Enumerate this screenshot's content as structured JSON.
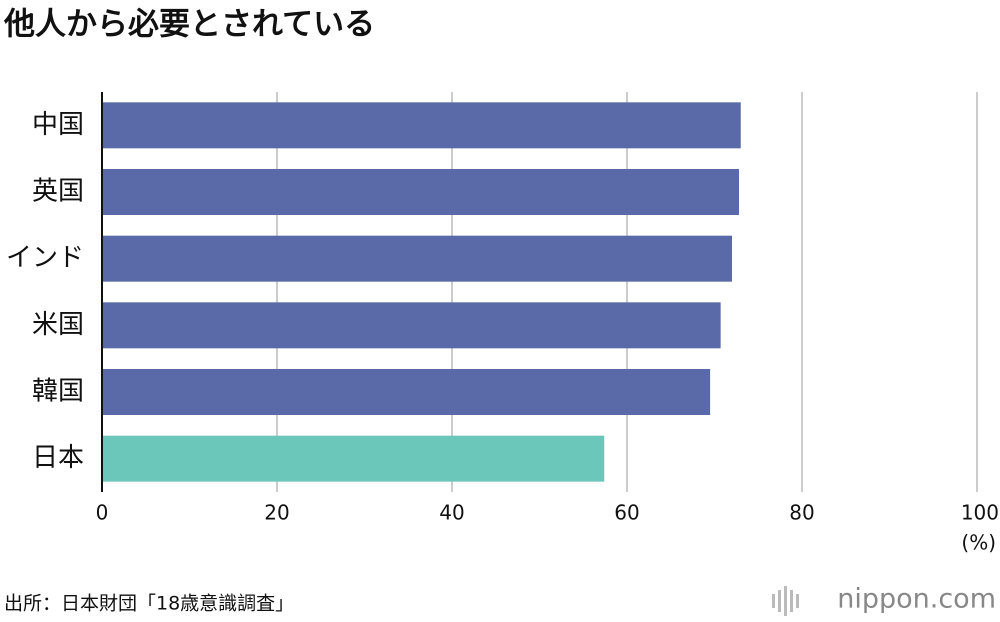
{
  "chart_data": {
    "type": "bar",
    "orientation": "horizontal",
    "title": "他人から必要とされている",
    "categories": [
      "中国",
      "英国",
      "インド",
      "米国",
      "韓国",
      "日本"
    ],
    "values": [
      73.0,
      72.8,
      72.0,
      70.7,
      69.5,
      57.4
    ],
    "colors": [
      "#5a6aa8",
      "#5a6aa8",
      "#5a6aa8",
      "#5a6aa8",
      "#5a6aa8",
      "#6cc7bb"
    ],
    "xlim": [
      0,
      100
    ],
    "xticks": [
      0,
      20,
      40,
      60,
      80,
      100
    ],
    "x_label": "(%)",
    "grid": true,
    "source": "出所：日本財団「18歳意識調査」",
    "logo": "nippon.com"
  }
}
